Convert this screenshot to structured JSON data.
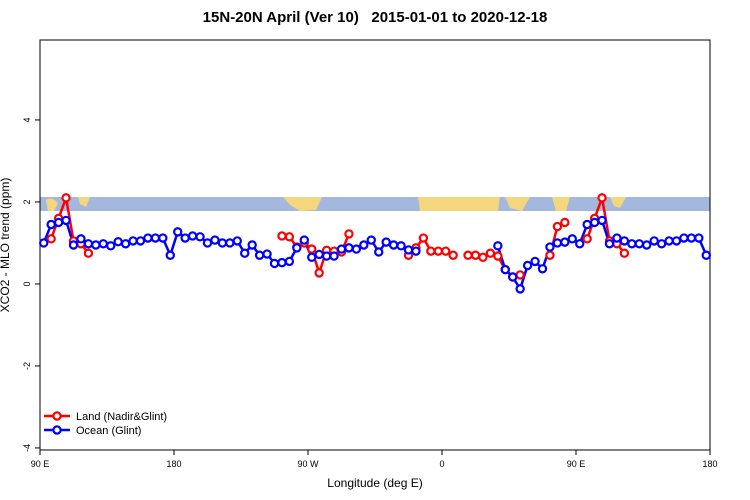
{
  "chart_data": {
    "type": "line",
    "title": "15N-20N April (Ver 10)   2015-01-01 to 2020-12-18",
    "x_label": "Longitude (deg E)",
    "y_label": "XCO2 - MLO trend (ppm)",
    "x": [
      92.5,
      97.5,
      102.5,
      107.5,
      112.5,
      117.5,
      122.5,
      127.5,
      132.5,
      137.5,
      142.5,
      147.5,
      152.5,
      157.5,
      162.5,
      167.5,
      172.5,
      177.5,
      182.5,
      187.5,
      192.5,
      197.5,
      202.5,
      207.5,
      212.5,
      217.5,
      222.5,
      227.5,
      232.5,
      237.5,
      242.5,
      247.5,
      252.5,
      257.5,
      262.5,
      267.5,
      272.5,
      277.5,
      282.5,
      287.5,
      292.5,
      297.5,
      302.5,
      307.5,
      312.5,
      317.5,
      322.5,
      327.5,
      332.5,
      337.5,
      342.5,
      347.5,
      352.5,
      357.5,
      362.5,
      367.5,
      372.5,
      377.5,
      382.5,
      387.5,
      392.5,
      397.5,
      402.5,
      407.5,
      412.5,
      417.5,
      422.5,
      427.5,
      432.5,
      437.5,
      442.5,
      447.5,
      452.5,
      457.5,
      462.5,
      467.5,
      472.5,
      477.5,
      482.5,
      487.5,
      492.5,
      497.5,
      502.5,
      507.5,
      512.5,
      517.5,
      522.5,
      527.5,
      532.5,
      537.5
    ],
    "series": [
      {
        "name": "Land (Nadir&Glint)",
        "color": "#ff0000",
        "values": [
          null,
          1.1,
          1.6,
          2.1,
          1.05,
          0.98,
          0.75,
          null,
          null,
          null,
          null,
          null,
          null,
          null,
          null,
          null,
          null,
          null,
          null,
          null,
          null,
          null,
          null,
          null,
          null,
          null,
          null,
          null,
          null,
          null,
          null,
          null,
          1.17,
          1.15,
          0.9,
          1.0,
          0.85,
          0.27,
          0.82,
          0.8,
          0.78,
          1.22,
          null,
          null,
          null,
          null,
          null,
          null,
          null,
          0.7,
          0.88,
          1.12,
          0.8,
          0.8,
          0.8,
          0.7,
          null,
          0.7,
          0.7,
          0.65,
          0.75,
          0.68,
          0.35,
          0.17,
          0.22,
          null,
          null,
          null,
          0.7,
          1.4,
          1.5,
          null,
          null,
          1.1,
          1.6,
          2.1,
          1.05,
          0.98,
          0.75,
          null,
          null,
          null,
          null,
          null,
          null,
          null,
          null,
          null,
          null,
          null
        ]
      },
      {
        "name": "Ocean (Glint)",
        "color": "#0000ff",
        "values": [
          1.0,
          1.45,
          1.5,
          1.55,
          0.95,
          1.1,
          0.98,
          0.95,
          0.98,
          0.93,
          1.03,
          0.98,
          1.05,
          1.05,
          1.12,
          1.12,
          1.12,
          0.7,
          1.27,
          1.12,
          1.17,
          1.15,
          1.0,
          1.07,
          1.0,
          1.0,
          1.05,
          0.75,
          0.95,
          0.7,
          0.73,
          0.5,
          0.52,
          0.55,
          0.88,
          1.07,
          0.65,
          0.72,
          0.68,
          0.68,
          0.85,
          0.88,
          0.85,
          0.95,
          1.07,
          0.78,
          1.02,
          0.95,
          0.93,
          0.83,
          0.8,
          null,
          null,
          null,
          null,
          null,
          null,
          null,
          null,
          null,
          null,
          0.93,
          0.35,
          0.17,
          -0.12,
          0.45,
          0.55,
          0.37,
          0.9,
          1.0,
          1.02,
          1.1,
          0.98,
          1.45,
          1.5,
          1.55,
          0.98,
          1.12,
          1.05,
          0.98,
          0.98,
          0.95,
          1.05,
          0.98,
          1.05,
          1.05,
          1.12,
          1.12,
          1.12,
          0.7
        ]
      }
    ],
    "xlim": [
      90,
      540
    ],
    "xticks": [
      {
        "value": 90,
        "label": "90 E"
      },
      {
        "value": 180,
        "label": "180"
      },
      {
        "value": 270,
        "label": "90 W"
      },
      {
        "value": 360,
        "label": "0"
      },
      {
        "value": 450,
        "label": "90 E"
      },
      {
        "value": 540,
        "label": "180"
      }
    ],
    "ylim": [
      -4.05,
      5.95
    ],
    "yticks": [
      -4,
      -2,
      0,
      2,
      4
    ],
    "legend": "bottom-left"
  }
}
